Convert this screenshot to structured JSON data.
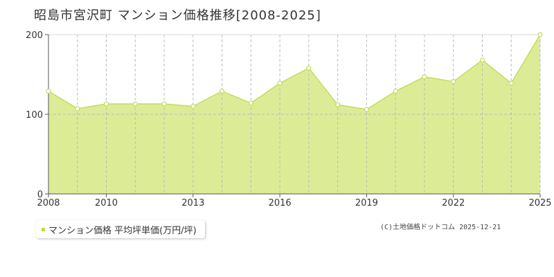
{
  "title": "昭島市宮沢町 マンション価格推移[2008-2025]",
  "legend_label": "マンション価格 平均坪単価(万円/坪)",
  "copyright": "(C)土地価格ドットコム 2025-12-21",
  "colors": {
    "area": "#dcec96",
    "line": "#c3dc5a",
    "point_fill": "#ffffff",
    "grid": "#bbbbbb",
    "axis": "#555555"
  },
  "chart_data": {
    "type": "area",
    "x": [
      2008,
      2009,
      2010,
      2011,
      2012,
      2013,
      2014,
      2015,
      2016,
      2017,
      2018,
      2019,
      2020,
      2021,
      2022,
      2023,
      2024,
      2025
    ],
    "series": [
      {
        "name": "マンション価格 平均坪単価(万円/坪)",
        "values": [
          129,
          107,
          113,
          113,
          113,
          110,
          129,
          114,
          139,
          158,
          112,
          106,
          129,
          147,
          141,
          168,
          139,
          200
        ]
      }
    ],
    "x_tick_labels": [
      "2008",
      "2010",
      "2013",
      "2016",
      "2019",
      "2022",
      "2025"
    ],
    "y_ticks": [
      0,
      100,
      200
    ],
    "xlim": [
      2008,
      2025
    ],
    "ylim": [
      0,
      200
    ],
    "grid": "vertical dashed each year, horizontal dashed at 100"
  }
}
